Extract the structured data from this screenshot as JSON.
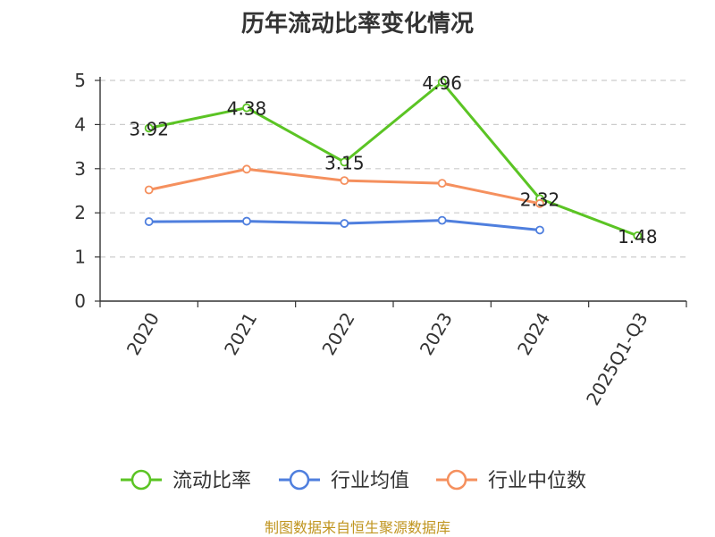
{
  "chart_data": {
    "type": "line",
    "title": "历年流动比率变化情况",
    "categories": [
      "2020",
      "2021",
      "2022",
      "2023",
      "2024",
      "2025Q1-Q3"
    ],
    "ylim": [
      0,
      5
    ],
    "yticks": [
      "0",
      "1",
      "2",
      "3",
      "4",
      "5"
    ],
    "grid": "horizontal-dashed",
    "legend_position": "bottom",
    "series": [
      {
        "name": "流动比率",
        "color": "#5bc424",
        "values": [
          3.92,
          4.38,
          3.15,
          4.96,
          2.32,
          1.48
        ],
        "labels": [
          "3.92",
          "4.38",
          "3.15",
          "4.96",
          "2.32",
          "1.48"
        ]
      },
      {
        "name": "行业均值",
        "color": "#4f7fde",
        "values": [
          1.8,
          1.81,
          1.76,
          1.83,
          1.61,
          null
        ]
      },
      {
        "name": "行业中位数",
        "color": "#f5905e",
        "values": [
          2.52,
          2.99,
          2.73,
          2.67,
          2.21,
          null
        ]
      }
    ]
  },
  "footer": {
    "source": "制图数据来自恒生聚源数据库"
  }
}
